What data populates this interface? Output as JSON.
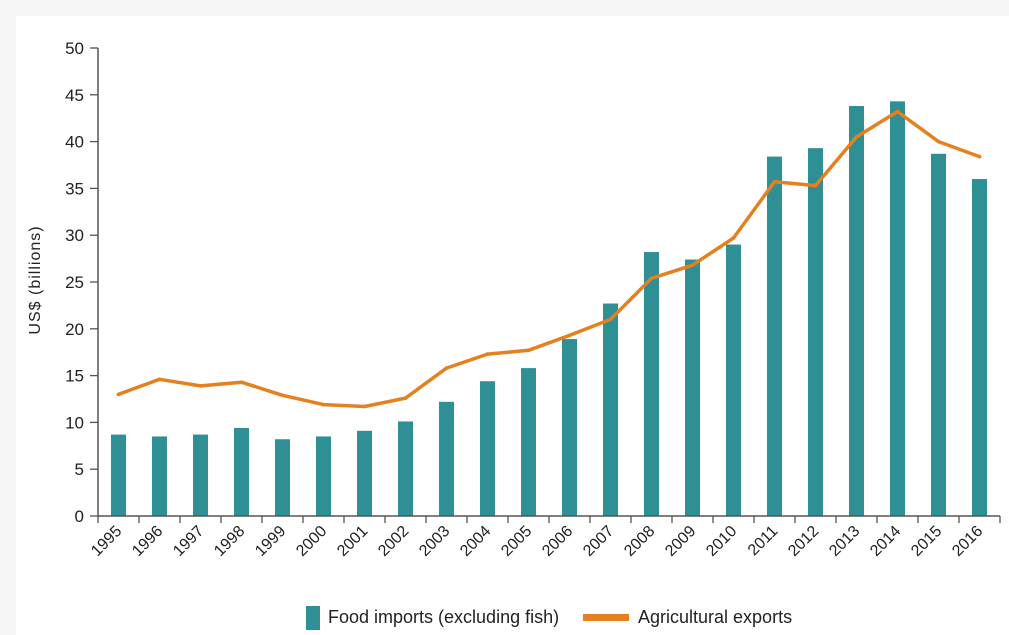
{
  "chart_data": {
    "type": "bar",
    "ylabel": "US$ (billions)",
    "xlabel": "",
    "ylim": [
      0,
      50
    ],
    "ytick_step": 5,
    "grid": false,
    "legend_position": "bottom",
    "categories": [
      "1995",
      "1996",
      "1997",
      "1998",
      "1999",
      "2000",
      "2001",
      "2002",
      "2003",
      "2004",
      "2005",
      "2006",
      "2007",
      "2008",
      "2009",
      "2010",
      "2011",
      "2012",
      "2013",
      "2014",
      "2015",
      "2016"
    ],
    "series": [
      {
        "name": "Food imports (excluding fish)",
        "kind": "bar",
        "color": "#2e8f95",
        "values": [
          8.7,
          8.5,
          8.7,
          9.4,
          8.2,
          8.5,
          9.1,
          10.1,
          12.2,
          14.4,
          15.8,
          18.9,
          22.7,
          28.2,
          27.4,
          29.0,
          38.4,
          39.3,
          43.8,
          44.3,
          38.7,
          36.0
        ]
      },
      {
        "name": "Agricultural exports",
        "kind": "line",
        "color": "#e5801f",
        "values": [
          13.0,
          14.6,
          13.9,
          14.3,
          12.9,
          11.9,
          11.7,
          12.6,
          15.8,
          17.3,
          17.7,
          19.3,
          21.0,
          25.4,
          26.8,
          29.7,
          35.7,
          35.3,
          40.5,
          43.2,
          40.0,
          38.4
        ]
      }
    ]
  }
}
